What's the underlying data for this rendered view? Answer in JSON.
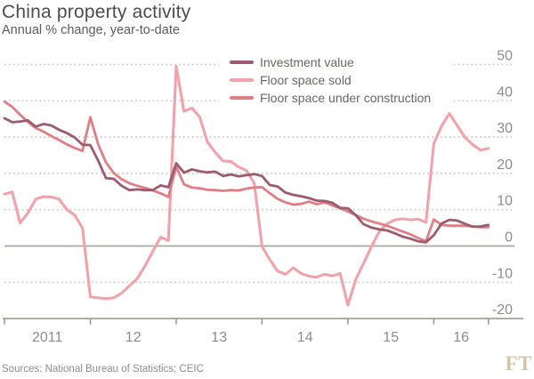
{
  "header": {
    "title": "China property activity",
    "subtitle": "Annual % change, year-to-date"
  },
  "source_line": "Sources: National Bureau of Statistics; CEIC",
  "logo_text": "FT",
  "colors": {
    "background": "#ffffff",
    "title_text": "#4d4d4d",
    "subtitle_text": "#5f5b57",
    "legend_text": "#6b6661",
    "axis_label": "#8c8c8c",
    "grid_dotted": "#cfcbc1",
    "zero_line": "#a6aa9c",
    "axis": "#999d90",
    "source_text": "#918c86",
    "logo": "#d5c5a8"
  },
  "chart_data": {
    "type": "line",
    "title": "China property activity",
    "subtitle": "Annual % change, year-to-date",
    "x_description": "Monthly year-to-date readings Feb 2011 - Sep 2016 (Jan omitted each year)",
    "x_tick_labels": [
      "2011",
      "12",
      "13",
      "14",
      "15",
      "16"
    ],
    "points_per_year": [
      11,
      11,
      11,
      11,
      11,
      8
    ],
    "ylim": [
      -20,
      50
    ],
    "y_ticks": [
      50,
      40,
      30,
      20,
      10,
      0,
      -10,
      -20
    ],
    "grid": "dotted horizontal, solid zero line, labels on right",
    "legend_position": "top-center",
    "series": [
      {
        "name": "Investment value",
        "color": "#9c5b6f",
        "stroke_width": 2.8,
        "values": [
          35.2,
          34.1,
          34.3,
          34.6,
          32.9,
          33.6,
          33.2,
          32.0,
          31.1,
          29.9,
          27.9,
          27.8,
          23.5,
          18.7,
          18.5,
          16.6,
          15.4,
          15.6,
          15.4,
          15.4,
          16.7,
          16.2,
          22.8,
          20.2,
          21.1,
          20.6,
          20.3,
          20.5,
          19.3,
          19.7,
          19.2,
          19.5,
          19.8,
          19.3,
          16.8,
          16.4,
          14.7,
          14.1,
          13.7,
          13.2,
          12.5,
          12.4,
          11.9,
          10.5,
          10.4,
          8.5,
          6.0,
          5.1,
          4.6,
          4.3,
          3.5,
          2.6,
          2.0,
          1.3,
          1.0,
          3.0,
          6.2,
          7.2,
          7.0,
          6.1,
          5.3,
          5.4,
          5.8
        ]
      },
      {
        "name": "Floor space sold",
        "color": "#f0a3ab",
        "stroke_width": 3.1,
        "values": [
          14.3,
          14.9,
          6.3,
          9.1,
          12.9,
          13.6,
          13.5,
          12.9,
          10.0,
          8.5,
          4.9,
          -14.0,
          -14.3,
          -14.5,
          -14.3,
          -13.0,
          -11.0,
          -9.0,
          -5.5,
          -1.5,
          2.4,
          1.5,
          49.5,
          37.1,
          38.0,
          35.6,
          28.7,
          25.8,
          23.4,
          23.3,
          21.8,
          20.8,
          17.3,
          -0.1,
          -3.8,
          -6.9,
          -7.8,
          -6.0,
          -7.6,
          -8.3,
          -8.6,
          -7.8,
          -8.2,
          -7.6,
          -16.3,
          -9.2,
          -4.8,
          -0.2,
          3.9,
          6.1,
          7.2,
          7.5,
          7.2,
          7.4,
          6.5,
          28.2,
          33.1,
          36.5,
          33.2,
          29.9,
          27.9,
          26.4,
          26.9
        ]
      },
      {
        "name": "Floor space under construction",
        "color": "#df7e85",
        "stroke_width": 2.8,
        "values": [
          39.8,
          38.3,
          36.2,
          34.2,
          32.5,
          31.5,
          30.3,
          29.2,
          28.0,
          27.0,
          26.2,
          35.5,
          28.0,
          23.1,
          20.1,
          18.4,
          17.3,
          16.6,
          16.0,
          15.3,
          14.5,
          13.5,
          21.8,
          17.0,
          16.1,
          15.9,
          15.5,
          15.4,
          15.2,
          15.4,
          15.3,
          15.8,
          16.1,
          16.2,
          14.5,
          13.0,
          12.0,
          11.4,
          11.6,
          12.2,
          11.5,
          12.0,
          11.2,
          10.4,
          9.5,
          8.5,
          7.5,
          6.8,
          6.2,
          5.6,
          4.8,
          4.0,
          3.2,
          2.2,
          1.3,
          7.3,
          5.8,
          5.6,
          5.6,
          5.6,
          5.4,
          5.2,
          5.2
        ]
      }
    ]
  }
}
